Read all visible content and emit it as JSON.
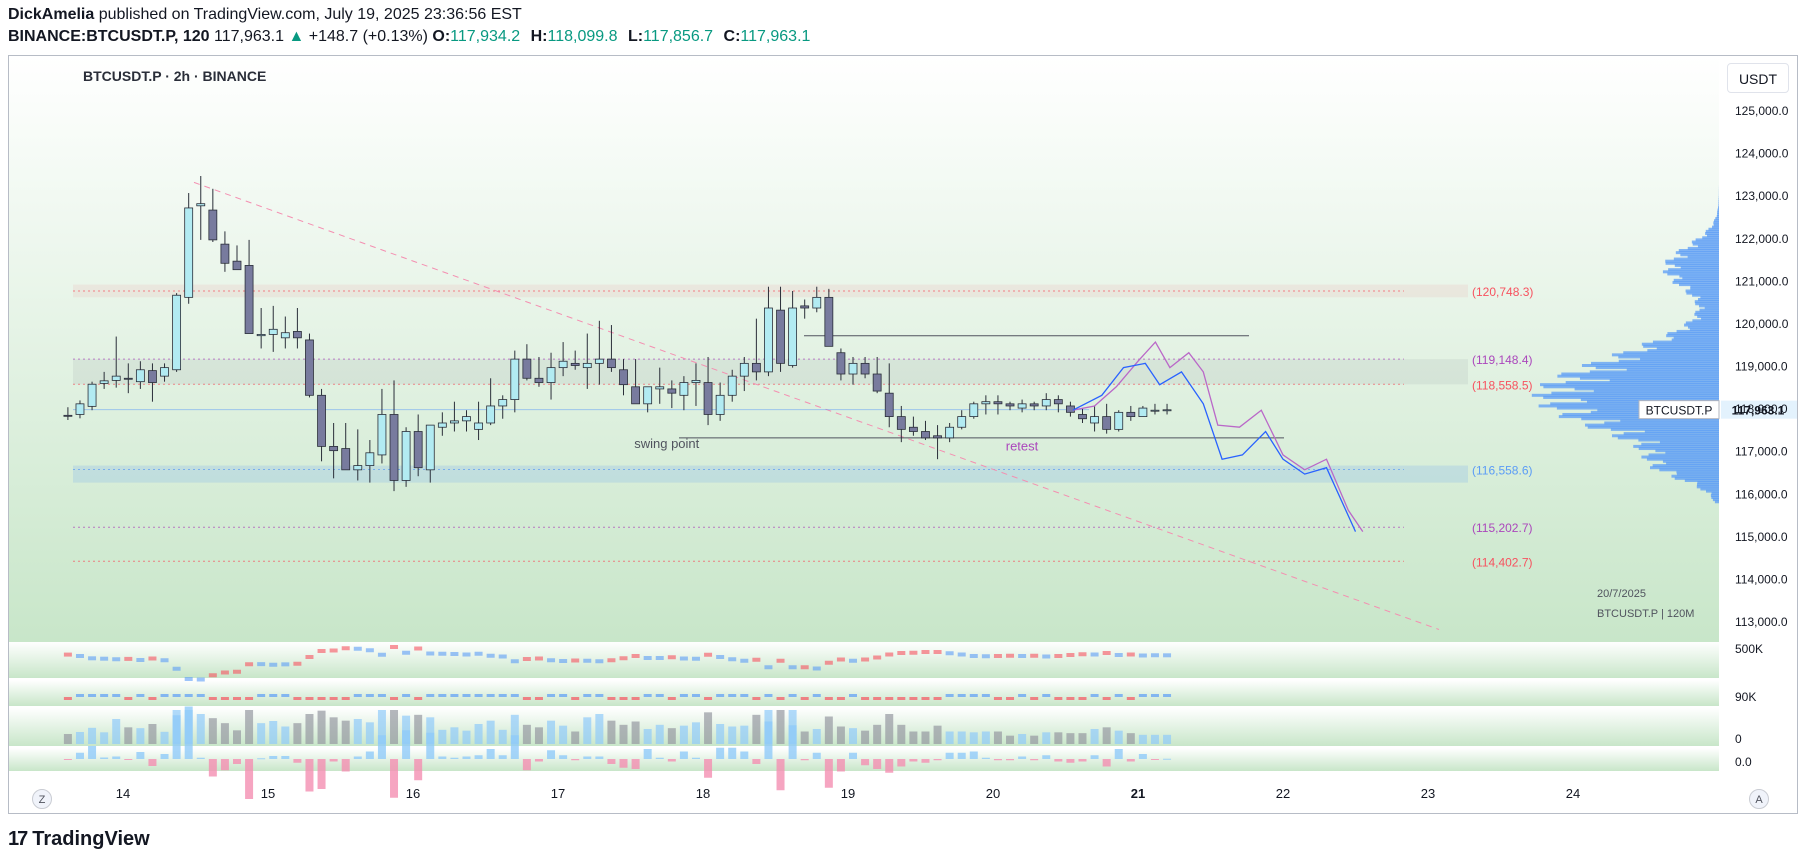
{
  "header": {
    "author": "DickAmelia",
    "published_text": "published on TradingView.com, July 19, 2025 23:36:56 EST",
    "symbol_line": "BINANCE:BTCUSDT.P, 120",
    "last_price": "117,963.1",
    "change_icon": "triangle-up-icon",
    "change": "+148.7 (+0.13%)",
    "open_label": "O:",
    "open": "117,934.2",
    "high_label": "H:",
    "high": "118,099.8",
    "low_label": "L:",
    "low": "117,856.7",
    "close_label": "C:",
    "close": "117,963.1"
  },
  "legend": "BTCUSDT.P · 2h · BINANCE",
  "currency": "USDT",
  "buttons": {
    "left": "Z",
    "right": "A"
  },
  "footer": {
    "logo_mark": "17",
    "logo_text": "TradingView"
  },
  "colors": {
    "bull": "#b2ebf2",
    "bear": "#787b9e",
    "accent": "#2962ff",
    "level_red": "#f7525f",
    "level_purple": "#ab47bc",
    "level_blue": "#5b9cf6",
    "projection_purple": "#ba68c8",
    "projection_blue": "#2962ff"
  },
  "chart_data": {
    "type": "candlestick",
    "title": "BTCUSDT.P · 2h · BINANCE",
    "ylim": [
      112800,
      125600
    ],
    "y_ticks": [
      125000,
      124000,
      123000,
      122000,
      121000,
      120000,
      119000,
      118000,
      117000,
      116000,
      115000,
      114000,
      113000
    ],
    "y_tick_labels": [
      "125,000.0",
      "124,000.0",
      "123,000.0",
      "122,000.0",
      "121,000.0",
      "120,000.0",
      "119,000.0",
      "118,000.0",
      "117,000.0",
      "116,000.0",
      "115,000.0",
      "114,000.0",
      "113,000.0"
    ],
    "x_ticks": [
      {
        "label": "14",
        "day": 14
      },
      {
        "label": "15",
        "day": 15
      },
      {
        "label": "16",
        "day": 16
      },
      {
        "label": "17",
        "day": 17
      },
      {
        "label": "18",
        "day": 18
      },
      {
        "label": "19",
        "day": 19
      },
      {
        "label": "20",
        "day": 20
      },
      {
        "label": "21",
        "day": 21
      },
      {
        "label": "22",
        "day": 22
      },
      {
        "label": "23",
        "day": 23
      },
      {
        "label": "24",
        "day": 24
      }
    ],
    "xlim_days": [
      13.6,
      24.9
    ],
    "candles": [
      [
        117830,
        118020,
        117720,
        117820
      ],
      [
        117850,
        118180,
        117760,
        118100
      ],
      [
        118040,
        118620,
        117950,
        118560
      ],
      [
        118580,
        118850,
        118450,
        118640
      ],
      [
        118650,
        119680,
        118480,
        118750
      ],
      [
        118700,
        119050,
        118350,
        118680
      ],
      [
        118620,
        119100,
        118450,
        118900
      ],
      [
        118880,
        119050,
        118150,
        118600
      ],
      [
        118750,
        119050,
        118620,
        118950
      ],
      [
        118900,
        120700,
        118850,
        120650
      ],
      [
        120600,
        123050,
        120450,
        122700
      ],
      [
        122750,
        123450,
        121950,
        122800
      ],
      [
        122650,
        123150,
        121900,
        121950
      ],
      [
        121850,
        122150,
        121200,
        121400
      ],
      [
        121450,
        121820,
        121300,
        121250
      ],
      [
        121350,
        121950,
        119750,
        119750
      ],
      [
        119700,
        120350,
        119400,
        119730
      ],
      [
        119730,
        120400,
        119320,
        119850
      ],
      [
        119650,
        120150,
        119400,
        119770
      ],
      [
        119800,
        120350,
        119400,
        119650
      ],
      [
        119600,
        119750,
        118250,
        118300
      ],
      [
        118300,
        118450,
        116750,
        117100
      ],
      [
        117100,
        117650,
        116350,
        117000
      ],
      [
        117050,
        117650,
        116550,
        116550
      ],
      [
        116550,
        117500,
        116300,
        116650
      ],
      [
        116650,
        117250,
        116250,
        116950
      ],
      [
        116900,
        118450,
        116700,
        117850
      ],
      [
        117850,
        118650,
        116050,
        116300
      ],
      [
        116300,
        117550,
        116150,
        117450
      ],
      [
        117450,
        117850,
        116400,
        116600
      ],
      [
        116550,
        117550,
        116250,
        117600
      ],
      [
        117550,
        117900,
        117350,
        117650
      ],
      [
        117650,
        118150,
        117450,
        117700
      ],
      [
        117700,
        117950,
        117450,
        117800
      ],
      [
        117500,
        118150,
        117250,
        117650
      ],
      [
        117650,
        118700,
        117600,
        118050
      ],
      [
        118050,
        118300,
        117750,
        118200
      ],
      [
        118200,
        119350,
        117900,
        119150
      ],
      [
        119150,
        119500,
        118650,
        118700
      ],
      [
        118700,
        119200,
        118500,
        118600
      ],
      [
        118600,
        119300,
        118200,
        118950
      ],
      [
        118950,
        119550,
        118750,
        119100
      ],
      [
        119050,
        119350,
        118900,
        119000
      ],
      [
        118950,
        119750,
        118450,
        119050
      ],
      [
        119050,
        120050,
        118550,
        119150
      ],
      [
        119150,
        119950,
        118850,
        118950
      ],
      [
        118900,
        119150,
        118300,
        118550
      ],
      [
        118500,
        119150,
        118100,
        118100
      ],
      [
        118100,
        118500,
        117900,
        118500
      ],
      [
        118450,
        118950,
        118100,
        118500
      ],
      [
        118450,
        118650,
        118000,
        118350
      ],
      [
        118300,
        118750,
        117950,
        118600
      ],
      [
        118600,
        119050,
        118050,
        118650
      ],
      [
        118600,
        119200,
        117600,
        117850
      ],
      [
        117850,
        118600,
        117700,
        118300
      ],
      [
        118300,
        118900,
        118150,
        118750
      ],
      [
        118750,
        119200,
        118400,
        119050
      ],
      [
        119050,
        120100,
        118650,
        118850
      ],
      [
        118850,
        120850,
        118750,
        120350
      ],
      [
        120300,
        120850,
        118850,
        119050
      ],
      [
        119000,
        120750,
        118950,
        120350
      ],
      [
        120400,
        120550,
        120100,
        120350
      ],
      [
        120350,
        120850,
        120250,
        120600
      ],
      [
        120600,
        120800,
        119450,
        119450
      ],
      [
        119300,
        119400,
        118650,
        118800
      ],
      [
        118800,
        119200,
        118550,
        119050
      ],
      [
        119050,
        119200,
        118700,
        118800
      ],
      [
        118800,
        119200,
        118350,
        118400
      ],
      [
        118350,
        119050,
        117550,
        117800
      ],
      [
        117800,
        118050,
        117200,
        117500
      ],
      [
        117550,
        117800,
        117350,
        117450
      ],
      [
        117450,
        117700,
        117250,
        117300
      ],
      [
        117350,
        117600,
        116800,
        117300
      ],
      [
        117300,
        117650,
        117200,
        117550
      ],
      [
        117550,
        117950,
        117500,
        117800
      ],
      [
        117800,
        118150,
        117750,
        118100
      ],
      [
        118100,
        118300,
        117850,
        118150
      ],
      [
        118150,
        118300,
        117850,
        118100
      ],
      [
        118100,
        118150,
        117950,
        118050
      ],
      [
        118000,
        118200,
        117900,
        118100
      ],
      [
        118100,
        118150,
        117950,
        118050
      ],
      [
        118050,
        118350,
        117950,
        118200
      ],
      [
        118200,
        118300,
        117900,
        118100
      ],
      [
        118050,
        118150,
        117800,
        117900
      ],
      [
        117850,
        118000,
        117650,
        117750
      ],
      [
        117650,
        118050,
        117450,
        117800
      ],
      [
        117800,
        118100,
        117400,
        117500
      ],
      [
        117500,
        117950,
        117450,
        117900
      ],
      [
        117900,
        118050,
        117700,
        117800
      ],
      [
        117800,
        118050,
        117800,
        118000
      ],
      [
        117950,
        118100,
        117850,
        117950
      ],
      [
        117950,
        118100,
        117850,
        117960
      ]
    ],
    "start_day": 13.62,
    "step_days": 0.0833,
    "levels": [
      {
        "value": 120748.3,
        "label": "(120,748.3)",
        "color": "#f7525f"
      },
      {
        "value": 119148.4,
        "label": "(119,148.4)",
        "color": "#ab47bc"
      },
      {
        "value": 118558.5,
        "label": "(118,558.5)",
        "color": "#f7525f"
      },
      {
        "value": 116558.6,
        "label": "(116,558.6)",
        "color": "#5b9cf6"
      },
      {
        "value": 115202.7,
        "label": "(115,202.7)",
        "color": "#ab47bc"
      },
      {
        "value": 114402.7,
        "label": "(114,402.7)",
        "color": "#f7525f"
      }
    ],
    "annotations": [
      {
        "text": "swing point",
        "day": 17.75,
        "y": 117180,
        "color": "#50535e"
      },
      {
        "text": "retest",
        "day": 20.2,
        "y": 117120,
        "color": "#ab47bc"
      }
    ],
    "current_price_label": "117,963.1",
    "current_price_symbol": "BTCUSDT.P",
    "current_price": 117963.1,
    "date_caption": "20/7/2025",
    "profile_caption": "BTCUSDT.P | 120M",
    "projection_purple": [
      [
        20.55,
        117950
      ],
      [
        20.7,
        118050
      ],
      [
        20.85,
        118500
      ],
      [
        21.0,
        119100
      ],
      [
        21.12,
        119550
      ],
      [
        21.22,
        118950
      ],
      [
        21.35,
        119300
      ],
      [
        21.45,
        118850
      ],
      [
        21.55,
        117600
      ],
      [
        21.7,
        117550
      ],
      [
        21.85,
        117950
      ],
      [
        22.0,
        116900
      ],
      [
        22.15,
        116550
      ],
      [
        22.3,
        116800
      ],
      [
        22.45,
        115600
      ],
      [
        22.55,
        115100
      ]
    ],
    "projection_blue": [
      [
        20.55,
        117950
      ],
      [
        20.75,
        118300
      ],
      [
        20.9,
        118950
      ],
      [
        21.05,
        119050
      ],
      [
        21.15,
        118550
      ],
      [
        21.3,
        118850
      ],
      [
        21.45,
        118100
      ],
      [
        21.58,
        116800
      ],
      [
        21.72,
        116900
      ],
      [
        21.88,
        117450
      ],
      [
        22.0,
        116800
      ],
      [
        22.15,
        116450
      ],
      [
        22.3,
        116600
      ],
      [
        22.5,
        115100
      ]
    ],
    "volume_pane_axis_labels": [
      "500K",
      "90K",
      "0",
      "0.0"
    ]
  }
}
